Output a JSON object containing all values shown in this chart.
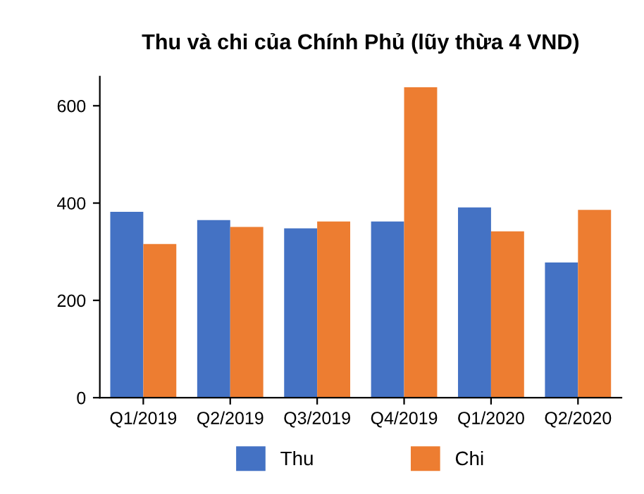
{
  "chart_data": {
    "type": "bar",
    "title": "Thu và chi của Chính Phủ (lũy thừa 4 VND)",
    "categories": [
      "Q1/2019",
      "Q2/2019",
      "Q3/2019",
      "Q4/2019",
      "Q1/2020",
      "Q2/2020"
    ],
    "series": [
      {
        "name": "Thu",
        "color": "#4472c4",
        "values": [
          382,
          365,
          348,
          362,
          391,
          278
        ]
      },
      {
        "name": "Chi",
        "color": "#ed7d31",
        "values": [
          316,
          351,
          362,
          638,
          342,
          386
        ]
      }
    ],
    "ylim": [
      0,
      660
    ],
    "yticks": [
      0,
      200,
      400,
      600
    ],
    "grid": false,
    "legend": "bottom"
  }
}
